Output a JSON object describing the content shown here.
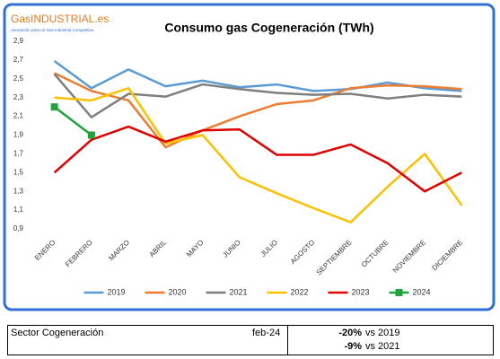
{
  "logo": {
    "name": "GasINDUSTRIAL.es",
    "tagline": "Asociación para un Gas Industrial Competitivo"
  },
  "chart_data": {
    "type": "line",
    "title": "Consumo gas Cogeneración (TWh)",
    "categories": [
      "ENERO",
      "FEBRERO",
      "MARZO",
      "ABRIL",
      "MAYO",
      "JUNIO",
      "JULIO",
      "AGOSTO",
      "SEPTIEMBRE",
      "OCTUBRE",
      "NOVIEMBRE",
      "DICIEMBRE"
    ],
    "series": [
      {
        "name": "2019",
        "color": "#5b9bd5",
        "values": [
          2.69,
          2.4,
          2.6,
          2.42,
          2.48,
          2.41,
          2.44,
          2.37,
          2.39,
          2.46,
          2.4,
          2.37
        ]
      },
      {
        "name": "2020",
        "color": "#ed7d31",
        "values": [
          2.56,
          2.37,
          2.27,
          1.77,
          1.95,
          2.1,
          2.23,
          2.27,
          2.4,
          2.43,
          2.42,
          2.39
        ]
      },
      {
        "name": "2021",
        "color": "#7f7f7f",
        "values": [
          2.55,
          2.09,
          2.34,
          2.31,
          2.44,
          2.39,
          2.35,
          2.33,
          2.34,
          2.29,
          2.33,
          2.31
        ]
      },
      {
        "name": "2022",
        "color": "#ffc000",
        "values": [
          2.3,
          2.27,
          2.4,
          1.81,
          1.9,
          1.45,
          1.28,
          1.12,
          0.97,
          1.35,
          1.7,
          1.15
        ]
      },
      {
        "name": "2023",
        "color": "#e00000",
        "values": [
          1.5,
          1.85,
          1.99,
          1.83,
          1.95,
          1.96,
          1.69,
          1.69,
          1.8,
          1.6,
          1.3,
          1.5
        ]
      },
      {
        "name": "2024",
        "color": "#1fa33a",
        "marker": "square",
        "values": [
          2.2,
          1.9,
          null,
          null,
          null,
          null,
          null,
          null,
          null,
          null,
          null,
          null
        ]
      }
    ],
    "ylim": [
      0.9,
      2.9
    ],
    "yticks": [
      {
        "value": 0.9,
        "label": "0,9"
      },
      {
        "value": 1.1,
        "label": "1,1"
      },
      {
        "value": 1.3,
        "label": "1,3"
      },
      {
        "value": 1.5,
        "label": "1,5"
      },
      {
        "value": 1.7,
        "label": "1,7"
      },
      {
        "value": 1.9,
        "label": "1,9"
      },
      {
        "value": 2.1,
        "label": "2,1"
      },
      {
        "value": 2.3,
        "label": "2,3"
      },
      {
        "value": 2.5,
        "label": "2,5"
      },
      {
        "value": 2.7,
        "label": "2,7"
      },
      {
        "value": 2.9,
        "label": "2,9"
      }
    ],
    "grid": false,
    "legend": "bottom"
  },
  "table": {
    "sector": "Sector Cogeneración",
    "date": "feb-24",
    "comparisons": [
      {
        "change": "-20%",
        "vs": "vs 2019"
      },
      {
        "change": "-9%",
        "vs": "vs 2021"
      }
    ]
  }
}
